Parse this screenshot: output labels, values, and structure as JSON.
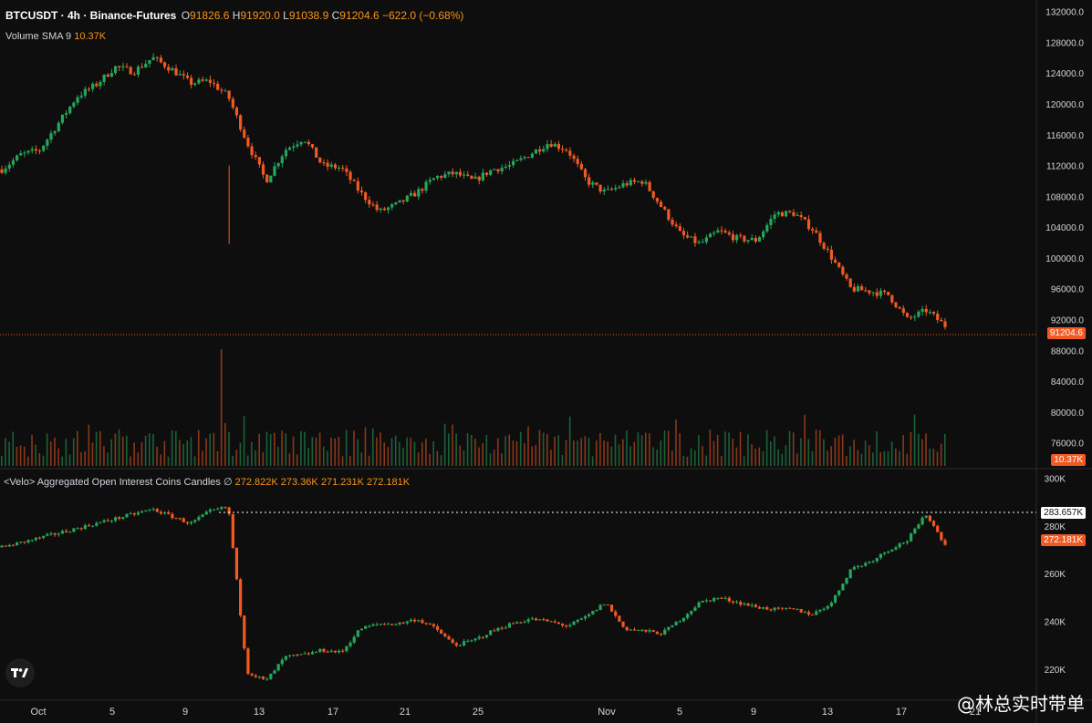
{
  "header": {
    "symbol": "BTCUSDT · 4h · Binance-Futures",
    "o_label": "O",
    "o_value": "91826.6",
    "h_label": "H",
    "h_value": "91920.0",
    "l_label": "L",
    "l_value": "91038.9",
    "c_label": "C",
    "c_value": "91204.6",
    "change": "−622.0 (−0.68%)",
    "volume_label": "Volume SMA 9",
    "volume_value": "10.37K"
  },
  "oi_header": {
    "title": "<Velo> Aggregated Open Interest Coins Candles",
    "symbol": "∅",
    "o": "272.822K",
    "h": "273.36K",
    "l": "271.231K",
    "c": "272.181K"
  },
  "price_tag": "91204.6",
  "volume_tag": "10.37K",
  "oi_tag": "272.181K",
  "oi_level_tag": "283.657K",
  "watermark": "@林总实时带单",
  "colors": {
    "up": "#26a65b",
    "down": "#f05a22",
    "background": "#0e0e0e",
    "price_line": "#f05a22",
    "level_line": "#ffffff"
  },
  "chart_data": [
    {
      "type": "candlestick",
      "title": "BTCUSDT · 4h · Binance-Futures",
      "y_ticks": [
        "132000.0",
        "128000.0",
        "124000.0",
        "120000.0",
        "116000.0",
        "112000.0",
        "108000.0",
        "104000.0",
        "100000.0",
        "96000.0",
        "92000.0",
        "88000.0",
        "84000.0",
        "80000.0",
        "76000.0"
      ],
      "ylim": [
        73000,
        133500
      ],
      "x_ticks": [
        "Oct",
        "5",
        "9",
        "13",
        "17",
        "21",
        "25",
        "Nov",
        "5",
        "9",
        "13",
        "17",
        "21"
      ],
      "close_path": {
        "x": [
          0,
          2,
          4,
          6,
          8,
          10,
          12,
          14,
          16,
          18,
          20,
          22,
          24,
          26,
          28,
          30,
          32,
          34,
          36,
          38,
          40,
          42,
          44,
          46,
          48,
          50,
          52,
          54,
          56,
          58,
          60,
          62,
          64,
          66,
          68,
          70,
          72,
          74,
          76,
          78,
          80,
          82,
          84,
          86,
          88,
          90,
          92,
          94,
          96,
          98,
          100
        ],
        "close": [
          111500,
          113400,
          114000,
          117500,
          121000,
          122500,
          124800,
          124200,
          126000,
          124500,
          122700,
          123000,
          121000,
          115000,
          110000,
          114000,
          115600,
          112000,
          111700,
          108500,
          106000,
          107000,
          108500,
          110500,
          111000,
          110000,
          111500,
          112000,
          113500,
          115000,
          114000,
          110000,
          108500,
          109600,
          110000,
          106500,
          103000,
          101800,
          103500,
          102500,
          102300,
          105800,
          105800,
          103700,
          100000,
          96000,
          95700,
          95200,
          92000,
          93200,
          91204.6
        ]
      }
    },
    {
      "type": "bar",
      "title": "Volume SMA 9",
      "last": "10.37K"
    },
    {
      "type": "candlestick",
      "title": "<Velo> Aggregated Open Interest Coins Candles",
      "y_ticks": [
        "300K",
        "280K",
        "260K",
        "240K",
        "220K"
      ],
      "ylim": [
        207000,
        304000
      ],
      "level_line": 283657,
      "close_path": {
        "x": [
          0,
          2,
          4,
          6,
          8,
          10,
          12,
          14,
          16,
          18,
          20,
          22,
          24,
          26,
          28,
          30,
          32,
          34,
          36,
          38,
          40,
          42,
          44,
          46,
          48,
          50,
          52,
          54,
          56,
          58,
          60,
          62,
          64,
          66,
          68,
          70,
          72,
          74,
          76,
          78,
          80,
          82,
          84,
          86,
          88,
          90,
          92,
          94,
          96,
          98,
          100
        ],
        "close": [
          271000,
          273000,
          275000,
          277000,
          279000,
          281000,
          283000,
          285000,
          287000,
          284000,
          281000,
          286000,
          288000,
          219000,
          215000,
          225000,
          226000,
          228000,
          227000,
          237000,
          239000,
          239000,
          241000,
          237000,
          230000,
          232000,
          236000,
          239000,
          241000,
          240000,
          238000,
          242000,
          248000,
          237000,
          236000,
          235000,
          241000,
          248000,
          250000,
          248000,
          246000,
          245000,
          245000,
          243000,
          248000,
          262000,
          265000,
          270000,
          274000,
          285000,
          272181
        ]
      }
    }
  ]
}
